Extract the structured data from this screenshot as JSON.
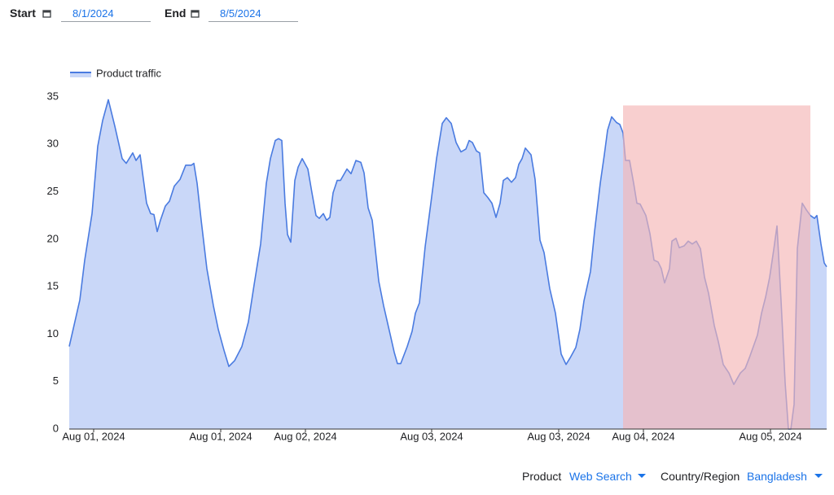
{
  "controls": {
    "start_label": "Start",
    "start_date": "8/1/2024",
    "end_label": "End",
    "end_date": "8/5/2024",
    "product_label": "Product",
    "product_value": "Web Search",
    "region_label": "Country/Region",
    "region_value": "Bangladesh"
  },
  "chart_data": {
    "type": "area",
    "legend": "top-left",
    "grid": false,
    "series": [
      {
        "name": "Product traffic",
        "color": "#4a7be0",
        "fill": "#c9d7f8",
        "x": [
          0,
          13,
          19,
          28,
          35,
          41,
          48,
          56,
          65,
          70,
          78,
          82,
          87,
          95,
          100,
          104,
          108,
          112,
          118,
          123,
          129,
          136,
          143,
          150,
          153,
          157,
          162,
          169,
          177,
          183,
          190,
          196,
          203,
          212,
          220,
          227,
          235,
          242,
          247,
          253,
          257,
          261,
          265,
          268,
          272,
          277,
          281,
          286,
          293,
          298,
          303,
          307,
          312,
          316,
          320,
          324,
          329,
          333,
          341,
          346,
          352,
          358,
          362,
          367,
          372,
          380,
          386,
          394,
          399,
          403,
          407,
          415,
          421,
          425,
          430,
          437,
          444,
          451,
          458,
          463,
          469,
          475,
          481,
          487,
          491,
          495,
          500,
          504,
          509,
          514,
          519,
          524,
          529,
          533,
          538,
          543,
          548,
          552,
          556,
          560,
          567,
          572,
          578,
          583,
          590,
          597,
          604,
          610,
          615,
          622,
          627,
          632,
          640,
          645,
          652,
          657,
          661,
          666,
          672,
          676,
          680,
          683,
          688,
          693,
          697,
          701,
          708,
          713,
          718,
          723,
          727,
          731,
          737,
          740,
          745,
          749,
          755,
          760,
          765,
          770,
          775,
          780,
          785,
          792,
          797,
          803,
          810,
          816,
          820,
          824,
          830,
          835,
          840,
          845,
          850,
          855,
          860,
          865,
          869,
          874,
          879,
          883,
          886,
          890,
          894,
          900,
          905,
          910,
          915,
          918,
          923,
          927,
          930
        ],
        "values": [
          8.7,
          13.6,
          17.8,
          22.7,
          29.8,
          32.5,
          34.7,
          31.9,
          28.5,
          28.0,
          29.1,
          28.3,
          28.9,
          23.8,
          22.7,
          22.6,
          20.8,
          22.0,
          23.5,
          24.0,
          25.6,
          26.3,
          27.8,
          27.8,
          28.0,
          25.9,
          22.0,
          16.9,
          13.0,
          10.5,
          8.3,
          6.6,
          7.2,
          8.7,
          11.3,
          15.2,
          19.5,
          25.9,
          28.5,
          30.4,
          30.6,
          30.4,
          23.8,
          20.5,
          19.7,
          26.2,
          27.6,
          28.5,
          27.4,
          24.9,
          22.5,
          22.2,
          22.7,
          22.0,
          22.3,
          24.9,
          26.2,
          26.2,
          27.4,
          26.9,
          28.3,
          28.1,
          27.0,
          23.3,
          22.0,
          15.6,
          13.0,
          10.0,
          8.1,
          6.9,
          6.9,
          8.7,
          10.3,
          12.2,
          13.3,
          19.2,
          23.8,
          28.5,
          32.2,
          32.8,
          32.2,
          30.2,
          29.2,
          29.5,
          30.4,
          30.2,
          29.3,
          29.1,
          24.9,
          24.4,
          23.8,
          22.3,
          23.8,
          26.2,
          26.5,
          26.0,
          26.5,
          27.9,
          28.5,
          29.6,
          28.9,
          26.3,
          19.9,
          18.6,
          14.8,
          12.2,
          7.9,
          6.8,
          7.5,
          8.6,
          10.5,
          13.5,
          16.6,
          20.8,
          25.9,
          28.9,
          31.5,
          32.9,
          32.3,
          32.1,
          31.2,
          28.3,
          28.3,
          25.9,
          23.8,
          23.7,
          22.5,
          20.6,
          17.8,
          17.6,
          16.9,
          15.4,
          16.9,
          19.8,
          20.1,
          19.1,
          19.3,
          19.8,
          19.5,
          19.8,
          19.0,
          16.0,
          14.3,
          10.9,
          9.2,
          6.8,
          5.9,
          4.7,
          5.3,
          5.9,
          6.4,
          7.5,
          8.7,
          9.9,
          12.2,
          13.9,
          16.0,
          18.9,
          21.4,
          13.5,
          4.9,
          0,
          0,
          2.6,
          19.0,
          23.8,
          23.1,
          22.5,
          22.2,
          22.5,
          19.5,
          17.5,
          17.1
        ]
      }
    ],
    "highlight": {
      "x": [
        680,
        910
      ],
      "y": [
        0,
        34.1
      ],
      "color": "#f4b6b6"
    },
    "xlim": [
      0,
      930
    ],
    "xticks": [
      {
        "value": 30,
        "label": "Aug 01, 2024"
      },
      {
        "value": 186,
        "label": "Aug 01, 2024"
      },
      {
        "value": 290,
        "label": "Aug 02, 2024"
      },
      {
        "value": 445,
        "label": "Aug 03, 2024"
      },
      {
        "value": 601,
        "label": "Aug 03, 2024"
      },
      {
        "value": 705,
        "label": "Aug 04, 2024"
      },
      {
        "value": 861,
        "label": "Aug 05, 2024"
      }
    ],
    "ylim": [
      0,
      35
    ],
    "yticks": [
      0,
      5,
      10,
      15,
      20,
      25,
      30,
      35
    ]
  }
}
